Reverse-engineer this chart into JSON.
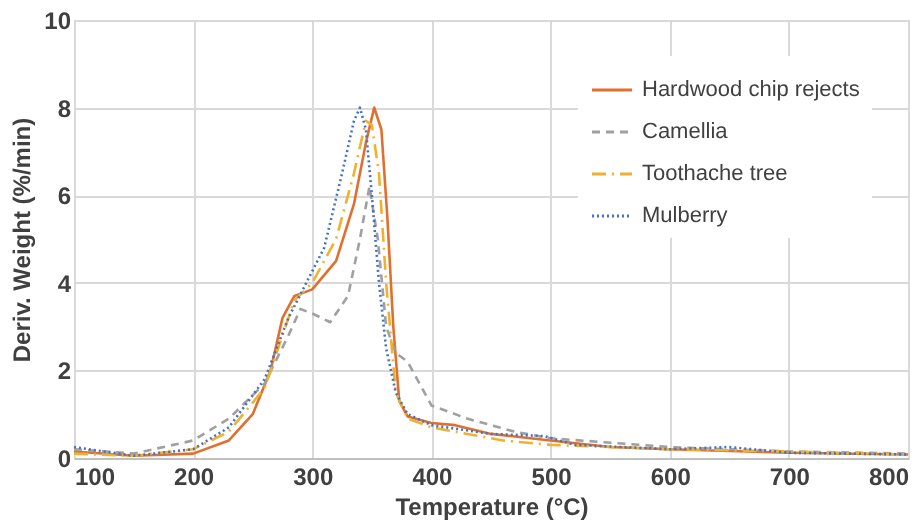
{
  "chart_data": {
    "type": "line",
    "xlabel": "Temperature (°C)",
    "ylabel": "Deriv. Weight (%/min)",
    "xlim": [
      100,
      800
    ],
    "xticks": [
      100,
      200,
      300,
      400,
      500,
      600,
      700,
      800
    ],
    "ylim": [
      0,
      10
    ],
    "yticks": [
      0,
      2,
      4,
      6,
      8,
      10
    ],
    "grid": true,
    "legend": "top right",
    "marker": "none",
    "series": [
      {
        "name": "Hardwood chip rejects",
        "color": "#e0702f",
        "line_style": "solid",
        "x": [
          100,
          150,
          200,
          230,
          250,
          265,
          275,
          285,
          300,
          320,
          335,
          345,
          352,
          358,
          363,
          368,
          373,
          380,
          400,
          420,
          450,
          500,
          550,
          600,
          700,
          800
        ],
        "values": [
          0.15,
          0.05,
          0.1,
          0.4,
          1.0,
          2.0,
          3.2,
          3.7,
          3.85,
          4.5,
          5.8,
          7.2,
          8.0,
          7.5,
          5.5,
          3.0,
          1.3,
          0.95,
          0.8,
          0.75,
          0.55,
          0.4,
          0.25,
          0.2,
          0.12,
          0.08
        ]
      },
      {
        "name": "Camellia",
        "color": "#a0a0a0",
        "line_style": "dashed",
        "x": [
          100,
          150,
          200,
          230,
          260,
          280,
          290,
          300,
          315,
          330,
          340,
          348,
          355,
          362,
          370,
          380,
          400,
          430,
          470,
          500,
          600,
          700,
          800
        ],
        "values": [
          0.2,
          0.1,
          0.4,
          0.9,
          1.7,
          2.8,
          3.4,
          3.3,
          3.1,
          3.7,
          5.0,
          6.2,
          5.0,
          3.0,
          2.4,
          2.2,
          1.2,
          0.9,
          0.6,
          0.45,
          0.25,
          0.15,
          0.1
        ]
      },
      {
        "name": "Toothache tree",
        "color": "#f0b030",
        "line_style": "dashdot",
        "x": [
          100,
          150,
          200,
          230,
          260,
          275,
          285,
          300,
          320,
          335,
          345,
          350,
          356,
          362,
          370,
          380,
          400,
          430,
          460,
          500,
          600,
          700,
          800
        ],
        "values": [
          0.1,
          0.05,
          0.2,
          0.6,
          1.6,
          2.8,
          3.6,
          4.0,
          5.0,
          6.5,
          7.7,
          7.6,
          6.5,
          4.0,
          1.5,
          0.9,
          0.7,
          0.55,
          0.4,
          0.3,
          0.2,
          0.15,
          0.08
        ]
      },
      {
        "name": "Mulberry",
        "color": "#4472c4",
        "line_style": "dotted",
        "x": [
          100,
          150,
          200,
          230,
          260,
          280,
          295,
          310,
          325,
          335,
          340,
          345,
          350,
          356,
          362,
          370,
          380,
          400,
          450,
          495,
          520,
          600,
          650,
          700,
          800
        ],
        "values": [
          0.25,
          0.05,
          0.2,
          0.7,
          1.8,
          3.2,
          4.0,
          4.8,
          6.5,
          7.7,
          8.0,
          7.5,
          6.0,
          4.0,
          2.5,
          1.5,
          1.0,
          0.75,
          0.55,
          0.5,
          0.3,
          0.2,
          0.25,
          0.12,
          0.08
        ]
      }
    ]
  }
}
